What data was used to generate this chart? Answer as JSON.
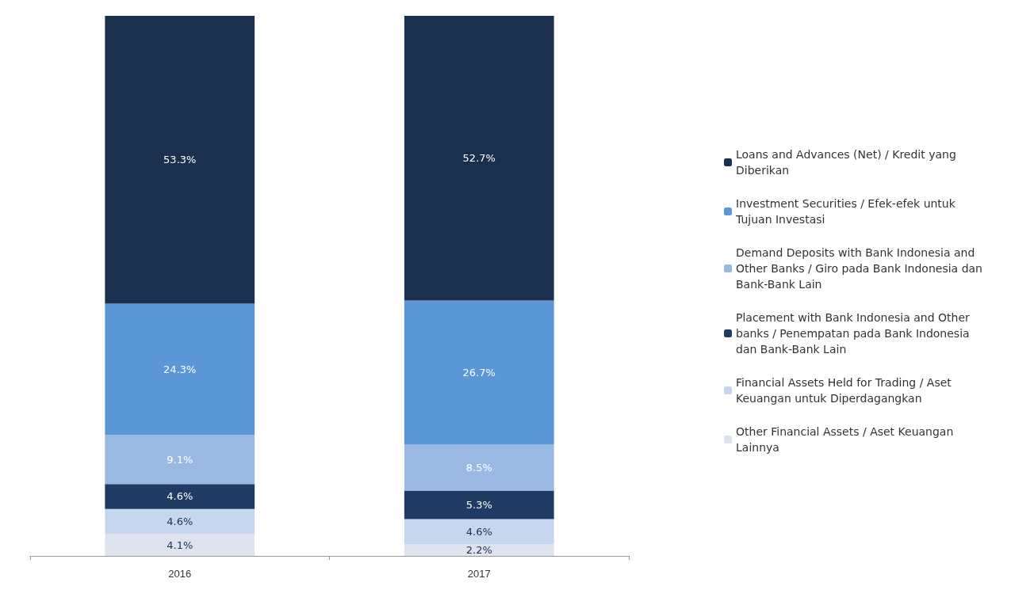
{
  "chart_data": {
    "type": "bar",
    "stacked": true,
    "categories": [
      "2016",
      "2017"
    ],
    "legend": "right",
    "grid": false,
    "series": [
      {
        "name": "Other Financial Assets / Aset Keuangan Lainnya",
        "color": "#dde4f0",
        "values": [
          4.1,
          2.2
        ],
        "value_labels": [
          "4.1%",
          "2.2%"
        ]
      },
      {
        "name": "Financial Assets Held for Trading / Aset Keuangan untuk Diperdagangkan",
        "color": "#c5d6ee",
        "values": [
          4.6,
          4.6
        ],
        "value_labels": [
          "4.6%",
          "4.6%"
        ]
      },
      {
        "name": "Placement with Bank Indonesia and Other banks / Penempatan pada Bank Indonesia dan Bank-Bank Lain",
        "color": "#1f3b63",
        "values": [
          4.6,
          5.3
        ],
        "value_labels": [
          "4.6%",
          "5.3%"
        ]
      },
      {
        "name": "Demand Deposits with Bank Indonesia and Other Banks / Giro pada Bank Indonesia dan Bank-Bank Lain",
        "color": "#9ab9e2",
        "values": [
          9.1,
          8.5
        ],
        "value_labels": [
          "9.1%",
          "8.5%"
        ]
      },
      {
        "name": "Investment Securities / Efek-efek untuk Tujuan Investasi",
        "color": "#5b96d6",
        "values": [
          24.3,
          26.7
        ],
        "value_labels": [
          "24.3%",
          "26.7%"
        ]
      },
      {
        "name": "Loans and Advances (Net) / Kredit yang Diberikan",
        "color": "#1b2f4e",
        "values": [
          53.3,
          52.7
        ],
        "value_labels": [
          "53.3%",
          "52.7%"
        ]
      }
    ]
  }
}
